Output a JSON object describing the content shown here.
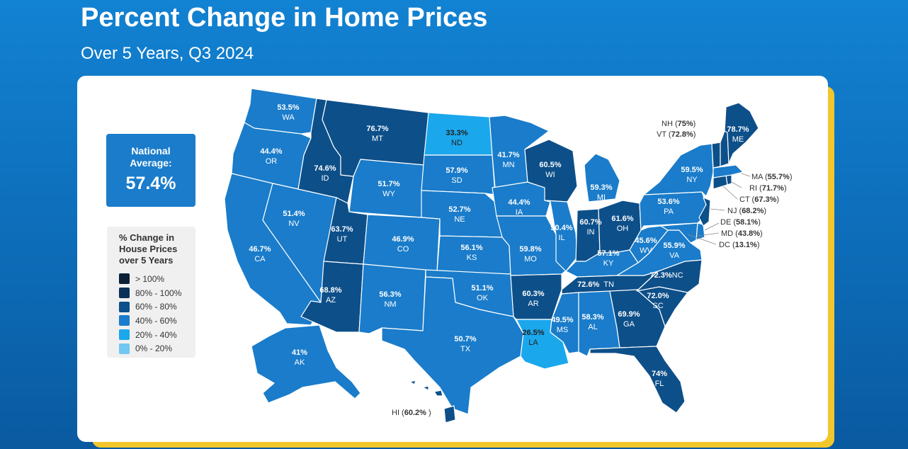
{
  "header": {
    "title": "Percent Change in Home Prices",
    "subtitle": "Over 5 Years, Q3 2024"
  },
  "national": {
    "label_line1": "National",
    "label_line2": "Average:",
    "value": "57.4%"
  },
  "legend": {
    "title_line1": "% Change in",
    "title_line2": "House Prices",
    "title_line3": "over 5 Years",
    "items": [
      {
        "label": "> 100%",
        "color": "#0b1f35"
      },
      {
        "label": "80% - 100%",
        "color": "#0a3057"
      },
      {
        "label": "60% - 80%",
        "color": "#0d4f89"
      },
      {
        "label": "40% - 60%",
        "color": "#1a7cca"
      },
      {
        "label": "20% - 40%",
        "color": "#1ba7ec"
      },
      {
        "label": "0% - 20%",
        "color": "#72c7f0"
      }
    ]
  },
  "states": {
    "WA": {
      "abbr": "WA",
      "value": "53.5%"
    },
    "OR": {
      "abbr": "OR",
      "value": "44.4%"
    },
    "CA": {
      "abbr": "CA",
      "value": "46.7%"
    },
    "NV": {
      "abbr": "NV",
      "value": "51.4%"
    },
    "ID": {
      "abbr": "ID",
      "value": "74.6%"
    },
    "MT": {
      "abbr": "MT",
      "value": "76.7%"
    },
    "WY": {
      "abbr": "WY",
      "value": "51.7%"
    },
    "UT": {
      "abbr": "UT",
      "value": "63.7%"
    },
    "CO": {
      "abbr": "CO",
      "value": "46.9%"
    },
    "AZ": {
      "abbr": "AZ",
      "value": "68.8%"
    },
    "NM": {
      "abbr": "NM",
      "value": "56.3%"
    },
    "ND": {
      "abbr": "ND",
      "value": "33.3%"
    },
    "SD": {
      "abbr": "SD",
      "value": "57.9%"
    },
    "NE": {
      "abbr": "NE",
      "value": "52.7%"
    },
    "KS": {
      "abbr": "KS",
      "value": "56.1%"
    },
    "OK": {
      "abbr": "OK",
      "value": "51.1%"
    },
    "TX": {
      "abbr": "TX",
      "value": "50.7%"
    },
    "MN": {
      "abbr": "MN",
      "value": "41.7%"
    },
    "IA": {
      "abbr": "IA",
      "value": "44.4%"
    },
    "MO": {
      "abbr": "MO",
      "value": "59.8%"
    },
    "AR": {
      "abbr": "AR",
      "value": "60.3%"
    },
    "LA": {
      "abbr": "LA",
      "value": "26.5%"
    },
    "WI": {
      "abbr": "WI",
      "value": "60.5%"
    },
    "IL": {
      "abbr": "IL",
      "value": "50.4%"
    },
    "MI": {
      "abbr": "MI",
      "value": "59.3%"
    },
    "IN": {
      "abbr": "IN",
      "value": "60.7%"
    },
    "OH": {
      "abbr": "OH",
      "value": "61.6%"
    },
    "KY": {
      "abbr": "KY",
      "value": "57.1%"
    },
    "TN": {
      "abbr": "TN",
      "value": "72.6%"
    },
    "MS": {
      "abbr": "MS",
      "value": "49.5%"
    },
    "AL": {
      "abbr": "AL",
      "value": "58.3%"
    },
    "GA": {
      "abbr": "GA",
      "value": "69.9%"
    },
    "FL": {
      "abbr": "FL",
      "value": "74%"
    },
    "SC": {
      "abbr": "SC",
      "value": "72.0%"
    },
    "NC": {
      "abbr": "NC",
      "value": "72.3%"
    },
    "VA": {
      "abbr": "VA",
      "value": "55.9%"
    },
    "WV": {
      "abbr": "WV",
      "value": "45.6%"
    },
    "PA": {
      "abbr": "PA",
      "value": "53.6%"
    },
    "NY": {
      "abbr": "NY",
      "value": "59.5%"
    },
    "ME": {
      "abbr": "ME",
      "value": "78.7%"
    },
    "AK": {
      "abbr": "AK",
      "value": "41%"
    },
    "HI": {
      "abbr": "HI",
      "value": "60.2%"
    },
    "NH": {
      "abbr": "NH",
      "value": "75%"
    },
    "VT": {
      "abbr": "VT",
      "value": "72.8%"
    },
    "MA": {
      "abbr": "MA",
      "value": "55.7%"
    },
    "RI": {
      "abbr": "RI",
      "value": "71.7%"
    },
    "CT": {
      "abbr": "CT",
      "value": "67.3%"
    },
    "NJ": {
      "abbr": "NJ",
      "value": "68.2%"
    },
    "DE": {
      "abbr": "DE",
      "value": "58.1%"
    },
    "MD": {
      "abbr": "MD",
      "value": "43.8%"
    },
    "DC": {
      "abbr": "DC",
      "value": "13.1%"
    }
  }
}
